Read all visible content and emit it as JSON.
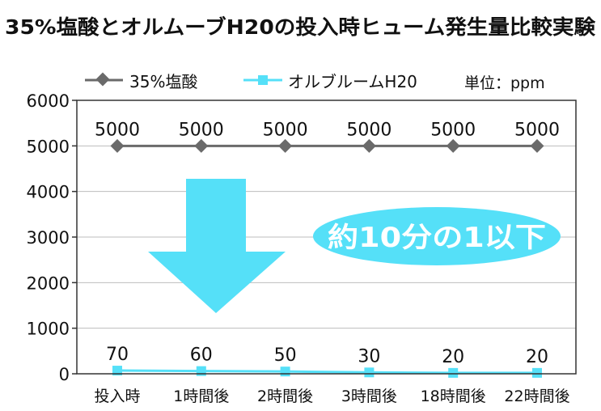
{
  "chart_data": {
    "type": "line",
    "title": "35%塩酸とオルムーブH20の投入時ヒューム発生量比較実験",
    "unit_label": "単位：ppm",
    "categories": [
      "投入時",
      "1時間後",
      "2時間後",
      "3時間後",
      "18時間後",
      "22時間後"
    ],
    "yticks": [
      "0",
      "1000",
      "2000",
      "3000",
      "4000",
      "5000",
      "6000"
    ],
    "ylim": [
      0,
      6000
    ],
    "grid": "horizontal",
    "legend_position": "top",
    "series": [
      {
        "name": "35%塩酸",
        "values": [
          5000,
          5000,
          5000,
          5000,
          5000,
          5000
        ],
        "labels": [
          "5000",
          "5000",
          "5000",
          "5000",
          "5000",
          "5000"
        ],
        "color": "#6a6a6a",
        "marker": "diamond"
      },
      {
        "name": "オルブルームH20",
        "values": [
          70,
          60,
          50,
          30,
          20,
          20
        ],
        "labels": [
          "70",
          "60",
          "50",
          "30",
          "20",
          "20"
        ],
        "color": "#55e0f8",
        "marker": "square"
      }
    ],
    "annotation": {
      "text": "約10分の1以下",
      "color": "#55e0f8",
      "arrow_color": "#55e0f8"
    }
  }
}
